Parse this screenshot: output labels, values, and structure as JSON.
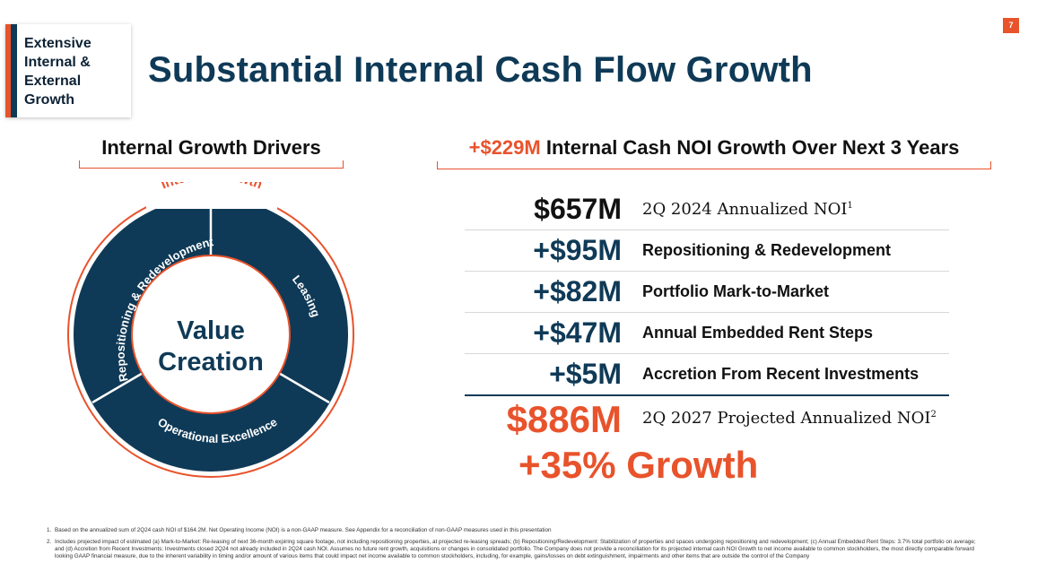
{
  "tag": {
    "text": "Extensive Internal & External Growth"
  },
  "page_number": "7",
  "title": "Substantial Internal Cash Flow Growth",
  "left_header": "Internal Growth Drivers",
  "right_header": {
    "accent": "+$229M",
    "rest": " Internal Cash NOI Growth Over Next 3 Years"
  },
  "diagram": {
    "outer_label": "Internal Growth",
    "segments": [
      "Leasing",
      "Operational Excellence",
      "Repositioning & Redevelopment"
    ],
    "center_line1": "Value",
    "center_line2": "Creation"
  },
  "rows": [
    {
      "amount": "$657M",
      "label": "2Q 2024 Annualized NOI",
      "sup": "1"
    },
    {
      "amount": "+$95M",
      "label": "Repositioning & Redevelopment"
    },
    {
      "amount": "+$82M",
      "label": "Portfolio Mark-to-Market"
    },
    {
      "amount": "+$47M",
      "label": "Annual Embedded Rent Steps"
    },
    {
      "amount": "+$5M",
      "label": "Accretion From Recent Investments"
    }
  ],
  "total": {
    "amount": "$886M",
    "label": "2Q 2027 Projected Annualized NOI",
    "sup": "2"
  },
  "growth": "+35% Growth",
  "footnotes": [
    {
      "num": "1.",
      "text": "Based on the annualized sum of 2Q24 cash NOI of $164.2M. Net Operating Income (NOI) is a non-GAAP measure. See Appendix for a reconciliation of non-GAAP measures used in this presentation"
    },
    {
      "num": "2.",
      "text": "Includes projected impact of estimated (a) Mark-to-Market: Re-leasing of next 36-month expiring square footage, not including repositioning properties, at projected re-leasing spreads; (b) Repositioning/Redevelopment: Stabilization of properties and spaces undergoing repositioning and redevelopment; (c) Annual Embedded Rent Steps: 3.7% total portfolio on average; and (d) Accretion from Recent Investments: Investments closed 2Q24 not already included in 2Q24 cash NOI. Assumes no future rent growth, acquisitions or changes in consolidated portfolio. The Company does not provide a reconciliation for its projected internal cash NOI Growth to net income available to common stockholders, the most directly comparable forward looking GAAP financial measure, due to the inherent variability in timing and/or amount of various items that could impact net income available to common stockholders, including, for example, gains/losses on debt extinguishment, impairments and other items that are outside the control of the Company"
    }
  ],
  "colors": {
    "navy": "#0f3a57",
    "orange": "#e8532c"
  }
}
